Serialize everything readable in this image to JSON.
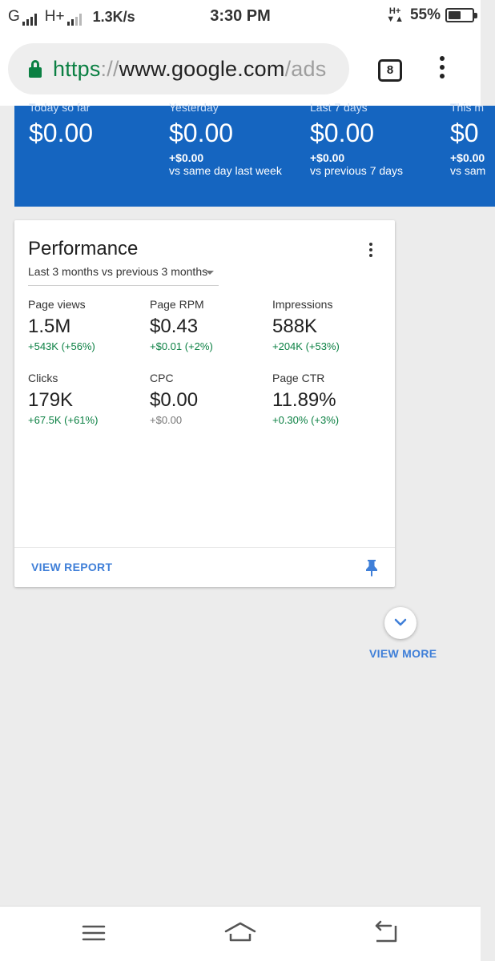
{
  "status_bar": {
    "net1": "G",
    "net2": "H+",
    "speed": "1.3K/s",
    "time": "3:30 PM",
    "data_top": "H+",
    "data_bottom": "▼▲",
    "battery": "55%",
    "battery_level": 0.55
  },
  "browser": {
    "url_scheme": "https",
    "url_sep": "://",
    "url_host": "www.google.com",
    "url_path": "/ads",
    "tab_count": "8"
  },
  "summary": [
    {
      "label": "Today so far",
      "amount": "$0.00",
      "delta": "",
      "compare": ""
    },
    {
      "label": "Yesterday",
      "amount": "$0.00",
      "delta": "+$0.00",
      "compare": "vs same day last week"
    },
    {
      "label": "Last 7 days",
      "amount": "$0.00",
      "delta": "+$0.00",
      "compare": "vs previous 7 days"
    },
    {
      "label": "This m",
      "amount": "$0",
      "delta": "+$0.00",
      "compare": "vs sam"
    }
  ],
  "performance": {
    "title": "Performance",
    "range": "Last 3 months vs previous 3 months",
    "metrics": [
      {
        "label": "Page views",
        "value": "1.5M",
        "change": "+543K (+56%)",
        "trend": "up"
      },
      {
        "label": "Page RPM",
        "value": "$0.43",
        "change": "+$0.01 (+2%)",
        "trend": "up"
      },
      {
        "label": "Impressions",
        "value": "588K",
        "change": "+204K (+53%)",
        "trend": "up"
      },
      {
        "label": "Clicks",
        "value": "179K",
        "change": "+67.5K (+61%)",
        "trend": "up"
      },
      {
        "label": "CPC",
        "value": "$0.00",
        "change": "+$0.00",
        "trend": "neutral"
      },
      {
        "label": "Page CTR",
        "value": "11.89%",
        "change": "+0.30% (+3%)",
        "trend": "up"
      }
    ],
    "view_report": "VIEW REPORT"
  },
  "view_more": "VIEW MORE",
  "colors": {
    "brand_blue": "#1565c0",
    "positive": "#0b8043",
    "neutral": "#757575",
    "link": "#3f7fd8"
  },
  "icons": {
    "lock": "lock-icon",
    "pin": "pin-icon",
    "chevron": "chevron-down-icon",
    "nav_menu": "menu-icon",
    "nav_home": "home-icon",
    "nav_back": "back-icon"
  }
}
